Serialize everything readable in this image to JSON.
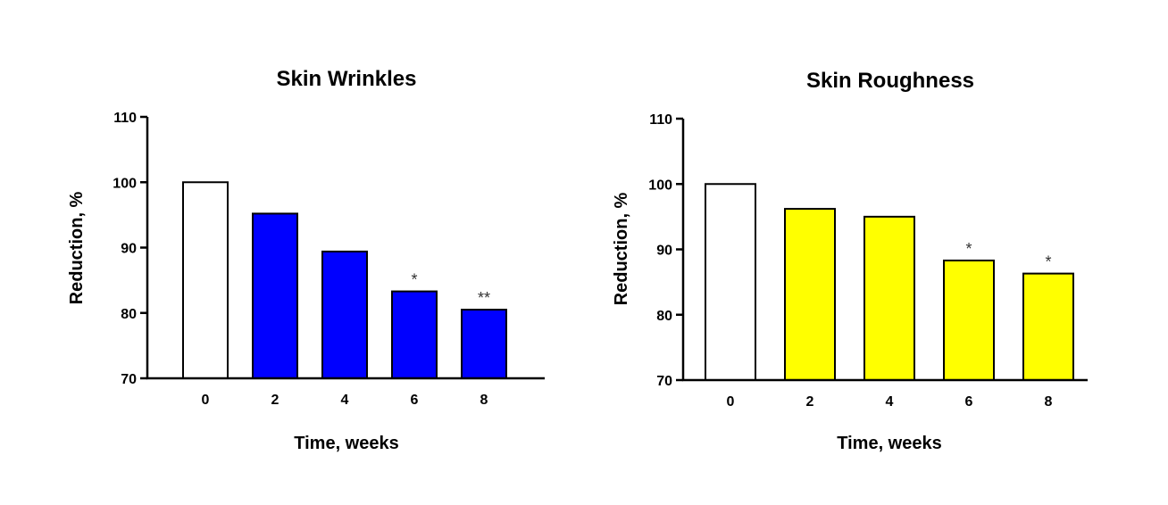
{
  "chart_data": [
    {
      "type": "bar",
      "title": "Skin Wrinkles",
      "xlabel": "Time, weeks",
      "ylabel": "Reduction, %",
      "categories": [
        "0",
        "2",
        "4",
        "6",
        "8"
      ],
      "values": [
        100,
        95.2,
        89.4,
        83.3,
        80.5
      ],
      "annotations": [
        "",
        "",
        "",
        "*",
        "**"
      ],
      "bar_colors": [
        "#ffffff",
        "#0000ff",
        "#0000ff",
        "#0000ff",
        "#0000ff"
      ],
      "ylim": [
        70,
        110
      ],
      "yticks": [
        70,
        80,
        90,
        100,
        110
      ],
      "grid": false
    },
    {
      "type": "bar",
      "title": "Skin Roughness",
      "xlabel": "Time, weeks",
      "ylabel": "Reduction, %",
      "categories": [
        "0",
        "2",
        "4",
        "6",
        "8"
      ],
      "values": [
        100,
        96.2,
        95.0,
        88.3,
        86.3
      ],
      "annotations": [
        "",
        "",
        "",
        "*",
        "*"
      ],
      "bar_colors": [
        "#ffffff",
        "#ffff00",
        "#ffff00",
        "#ffff00",
        "#ffff00"
      ],
      "ylim": [
        70,
        110
      ],
      "yticks": [
        70,
        80,
        90,
        100,
        110
      ],
      "grid": false
    }
  ]
}
